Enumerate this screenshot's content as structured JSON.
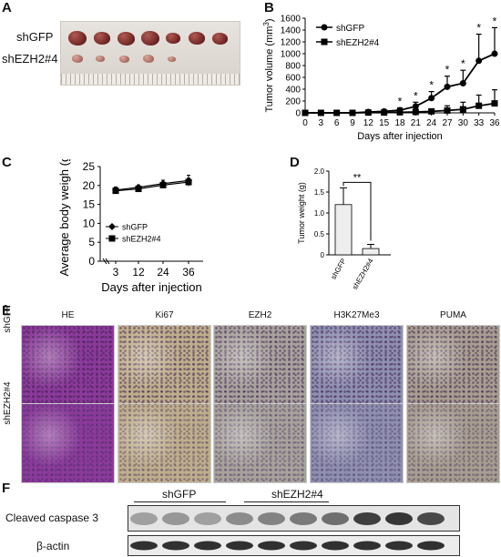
{
  "panel_labels": [
    "A",
    "B",
    "C",
    "D",
    "E",
    "F"
  ],
  "panel_a": {
    "row_labels": [
      "shGFP",
      "shEZH2#4"
    ],
    "tumors_top": 7,
    "tumors_bottom": 5,
    "photo_color": "#e0dbd5",
    "tumor_color": "#7a2a2a"
  },
  "chart_data": [
    {
      "panel": "B",
      "type": "line",
      "xlabel": "Days after injection",
      "ylabel": "Tumor volume (mm3)",
      "x": [
        0,
        3,
        6,
        9,
        12,
        15,
        18,
        21,
        24,
        27,
        30,
        33,
        36
      ],
      "xticks": [
        "0",
        "3",
        "6",
        "9",
        "12",
        "15",
        "18",
        "21",
        "24",
        "27",
        "30",
        "33",
        "36"
      ],
      "ylim": [
        0,
        1600
      ],
      "yticks": [
        "0",
        "200",
        "400",
        "600",
        "800",
        "1000",
        "1200",
        "1400",
        "1600"
      ],
      "series": [
        {
          "name": "shGFP",
          "marker": "circle",
          "values": [
            0,
            0,
            0,
            0,
            15,
            25,
            45,
            110,
            250,
            440,
            500,
            880,
            1000
          ],
          "err": [
            0,
            0,
            0,
            0,
            15,
            20,
            40,
            70,
            110,
            180,
            220,
            450,
            440
          ]
        },
        {
          "name": "shEZH2#4",
          "marker": "square",
          "values": [
            0,
            0,
            0,
            0,
            5,
            5,
            10,
            15,
            25,
            40,
            60,
            120,
            160
          ],
          "err": [
            0,
            0,
            0,
            0,
            5,
            5,
            10,
            15,
            40,
            80,
            120,
            180,
            230
          ]
        }
      ],
      "significance": [
        {
          "x": 18,
          "label": "*"
        },
        {
          "x": 21,
          "label": "*"
        },
        {
          "x": 24,
          "label": "*"
        },
        {
          "x": 27,
          "label": "*"
        },
        {
          "x": 30,
          "label": "*"
        },
        {
          "x": 33,
          "label": "*"
        },
        {
          "x": 36,
          "label": "*"
        }
      ],
      "legend": "top-left",
      "grid": false
    },
    {
      "panel": "C",
      "type": "line",
      "xlabel": "Days after injection",
      "ylabel": "Average body weigh (g)",
      "x": [
        3,
        12,
        24,
        36
      ],
      "xticks": [
        "3",
        "12",
        "24",
        "36"
      ],
      "ylim": [
        0,
        25
      ],
      "yticks": [
        "0",
        "5",
        "10",
        "15",
        "20",
        "25"
      ],
      "series": [
        {
          "name": "shGFP",
          "marker": "diamond",
          "values": [
            18.8,
            19.5,
            20.5,
            21.3
          ],
          "err": [
            0.8,
            0.6,
            0.9,
            1.4
          ]
        },
        {
          "name": "shEZH2#4",
          "marker": "square",
          "values": [
            18.6,
            19.1,
            20.1,
            20.9
          ],
          "err": [
            0.6,
            0.5,
            0.7,
            1.0
          ]
        }
      ],
      "legend": "bottom-left",
      "grid": false
    },
    {
      "panel": "D",
      "type": "bar",
      "ylabel": "Tumor weight (g)",
      "categories": [
        "shGFP",
        "shEZH2#4"
      ],
      "values": [
        1.2,
        0.15
      ],
      "err": [
        0.4,
        0.1
      ],
      "ylim": [
        0,
        2.0
      ],
      "yticks": [
        "0",
        "0.5",
        "1.0",
        "1.5",
        "2.0"
      ],
      "significance": {
        "label": "**"
      },
      "grid": false
    }
  ],
  "panel_e": {
    "columns": [
      "HE",
      "Ki67",
      "EZH2",
      "H3K27Me3",
      "PUMA"
    ],
    "rows": [
      "shGFP",
      "shEZH2#4"
    ],
    "stain_colors": {
      "HE": "#8b3a9a",
      "Ki67": "#bfae8c",
      "EZH2": "#a8a29c",
      "H3K27Me3": "#8f8fb0",
      "PUMA": "#a89e90"
    }
  },
  "panel_f": {
    "group_labels": [
      "shGFP",
      "shEZH2#4"
    ],
    "row_labels": [
      "Cleaved caspase 3",
      "β-actin"
    ],
    "lanes": 10
  }
}
